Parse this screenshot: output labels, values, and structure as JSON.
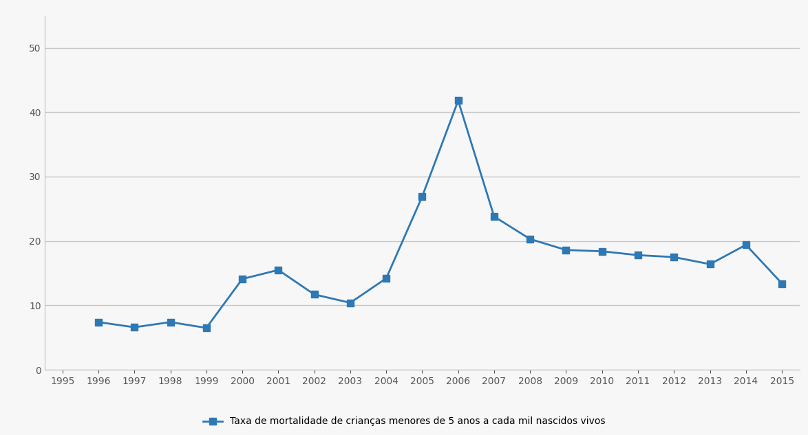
{
  "chart_data": {
    "type": "line",
    "categories": [
      "1995",
      "1996",
      "1997",
      "1998",
      "1999",
      "2000",
      "2001",
      "2002",
      "2003",
      "2004",
      "2005",
      "2006",
      "2007",
      "2008",
      "2009",
      "2010",
      "2011",
      "2012",
      "2013",
      "2014",
      "2015"
    ],
    "series": [
      {
        "name": "Taxa de mortalidade de crianças menores de 5 anos a cada mil nascidos vivos",
        "color": "#2e78b4",
        "marker": "s",
        "line_style": "solid",
        "values": [
          null,
          7.4,
          6.6,
          7.4,
          6.5,
          14.1,
          15.5,
          11.7,
          10.4,
          14.2,
          26.9,
          41.8,
          23.8,
          20.3,
          18.6,
          18.4,
          17.8,
          17.5,
          16.4,
          19.4,
          13.4
        ]
      }
    ],
    "ylim": [
      0,
      55
    ],
    "yticks": [
      0,
      10,
      20,
      30,
      40,
      50
    ],
    "grid": true,
    "legend": "lower center"
  }
}
